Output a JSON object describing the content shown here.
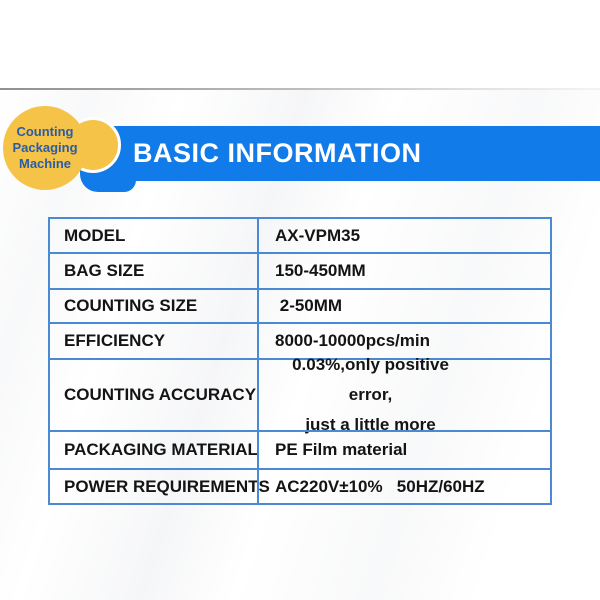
{
  "badge": {
    "lines": [
      "Counting",
      "Packaging",
      "Machine"
    ],
    "circle_color": "#f5c348",
    "text_color": "#2b5ca6"
  },
  "header": {
    "title": "BASIC INFORMATION",
    "bg_color": "#117be9",
    "text_color": "#ffffff"
  },
  "table": {
    "border_color": "#4a8ad4",
    "rows": [
      {
        "label": "MODEL",
        "value": "AX-VPM35"
      },
      {
        "label": "BAG SIZE",
        "value": "150-450MM"
      },
      {
        "label": "COUNTING SIZE",
        "value": " 2-50MM"
      },
      {
        "label": "EFFICIENCY",
        "value": "8000-10000pcs/min"
      },
      {
        "label": "COUNTING ACCURACY",
        "value": "0.03%,only positive error,",
        "value_line2": "just a little more"
      },
      {
        "label": "PACKAGING MATERIAL",
        "value": "PE Film material"
      },
      {
        "label": "POWER REQUIREMENTS",
        "value": "AC220V±10%   50HZ/60HZ"
      }
    ]
  }
}
